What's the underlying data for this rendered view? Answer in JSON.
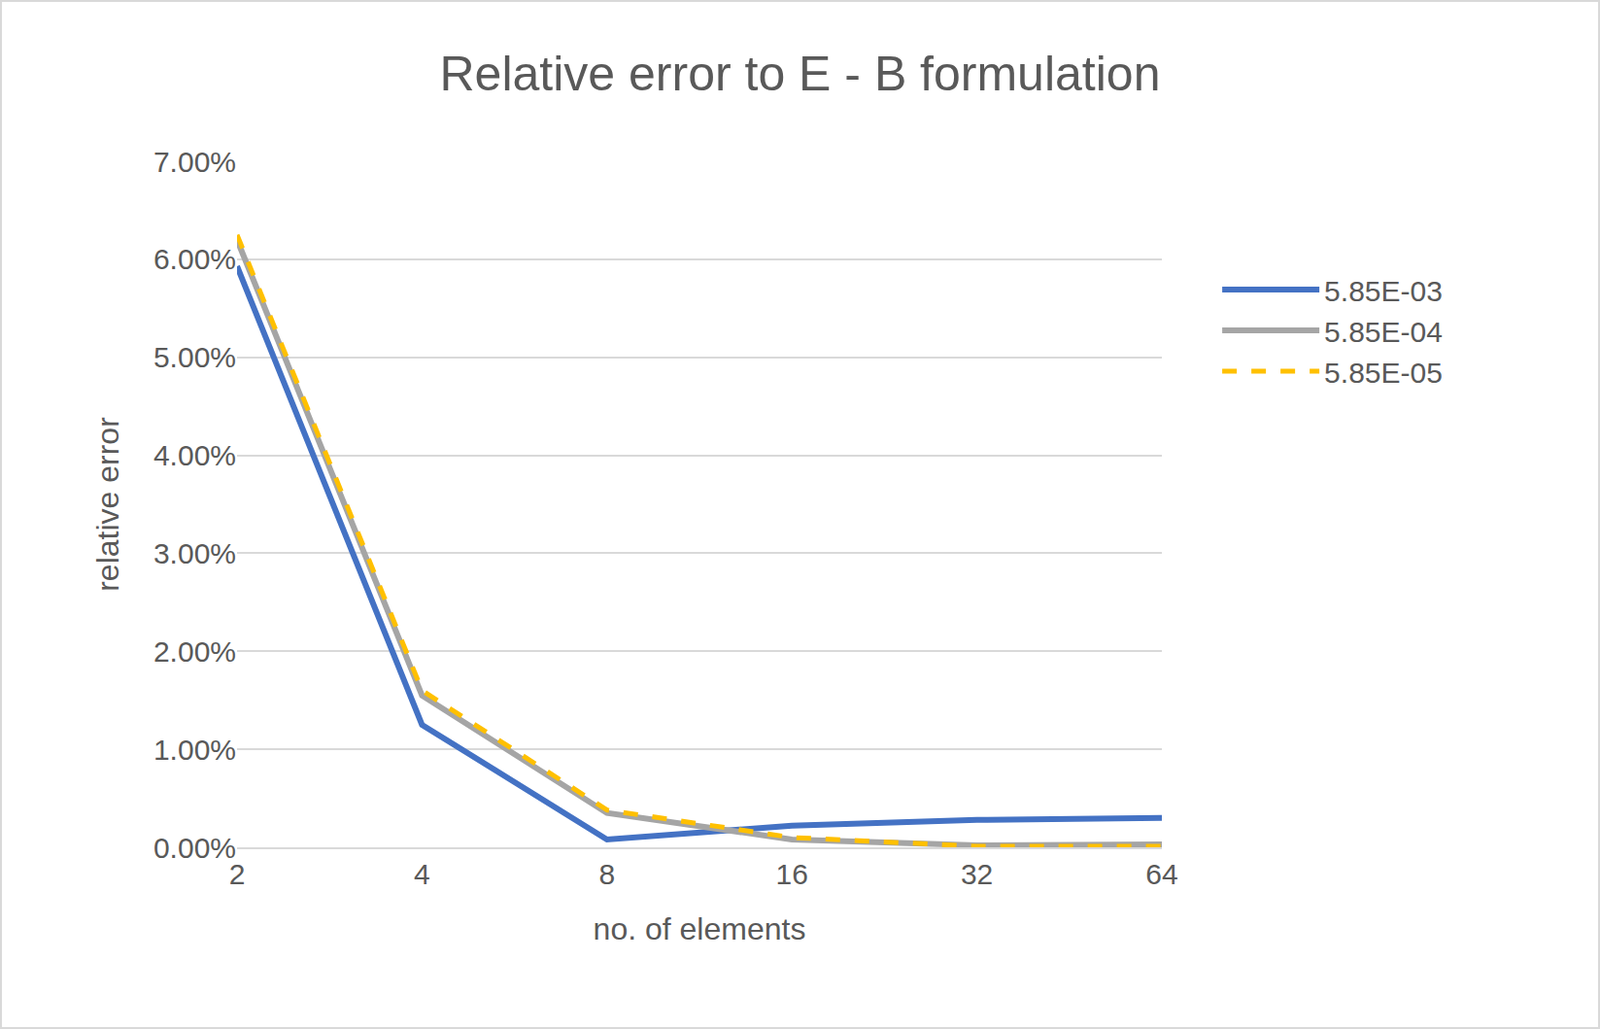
{
  "chart_data": {
    "type": "line",
    "title": "Relative error to E - B formulation",
    "x_label": "no. of elements",
    "y_label": "relative error",
    "categories": [
      "2",
      "4",
      "8",
      "16",
      "32",
      "64"
    ],
    "series": [
      {
        "name": "5.85E-03",
        "color": "#4472c4",
        "line_style": "solid",
        "values": [
          5.93,
          1.25,
          0.08,
          0.22,
          0.28,
          0.3
        ]
      },
      {
        "name": "5.85E-04",
        "color": "#a5a5a5",
        "line_style": "solid",
        "values": [
          6.2,
          1.55,
          0.35,
          0.08,
          0.02,
          0.03
        ]
      },
      {
        "name": "5.85E-05",
        "color": "#ffc000",
        "line_style": "dash",
        "values": [
          6.25,
          1.6,
          0.38,
          0.1,
          0.01,
          0.01
        ]
      }
    ],
    "ylim": [
      0,
      7
    ],
    "yticks": [
      {
        "value": 0,
        "label": "0.00%"
      },
      {
        "value": 1,
        "label": "1.00%"
      },
      {
        "value": 2,
        "label": "2.00%"
      },
      {
        "value": 3,
        "label": "3.00%"
      },
      {
        "value": 4,
        "label": "4.00%"
      },
      {
        "value": 5,
        "label": "5.00%"
      },
      {
        "value": 6,
        "label": "6.00%"
      },
      {
        "value": 7,
        "label": "7.00%"
      }
    ],
    "grid": true,
    "legend": "right"
  }
}
